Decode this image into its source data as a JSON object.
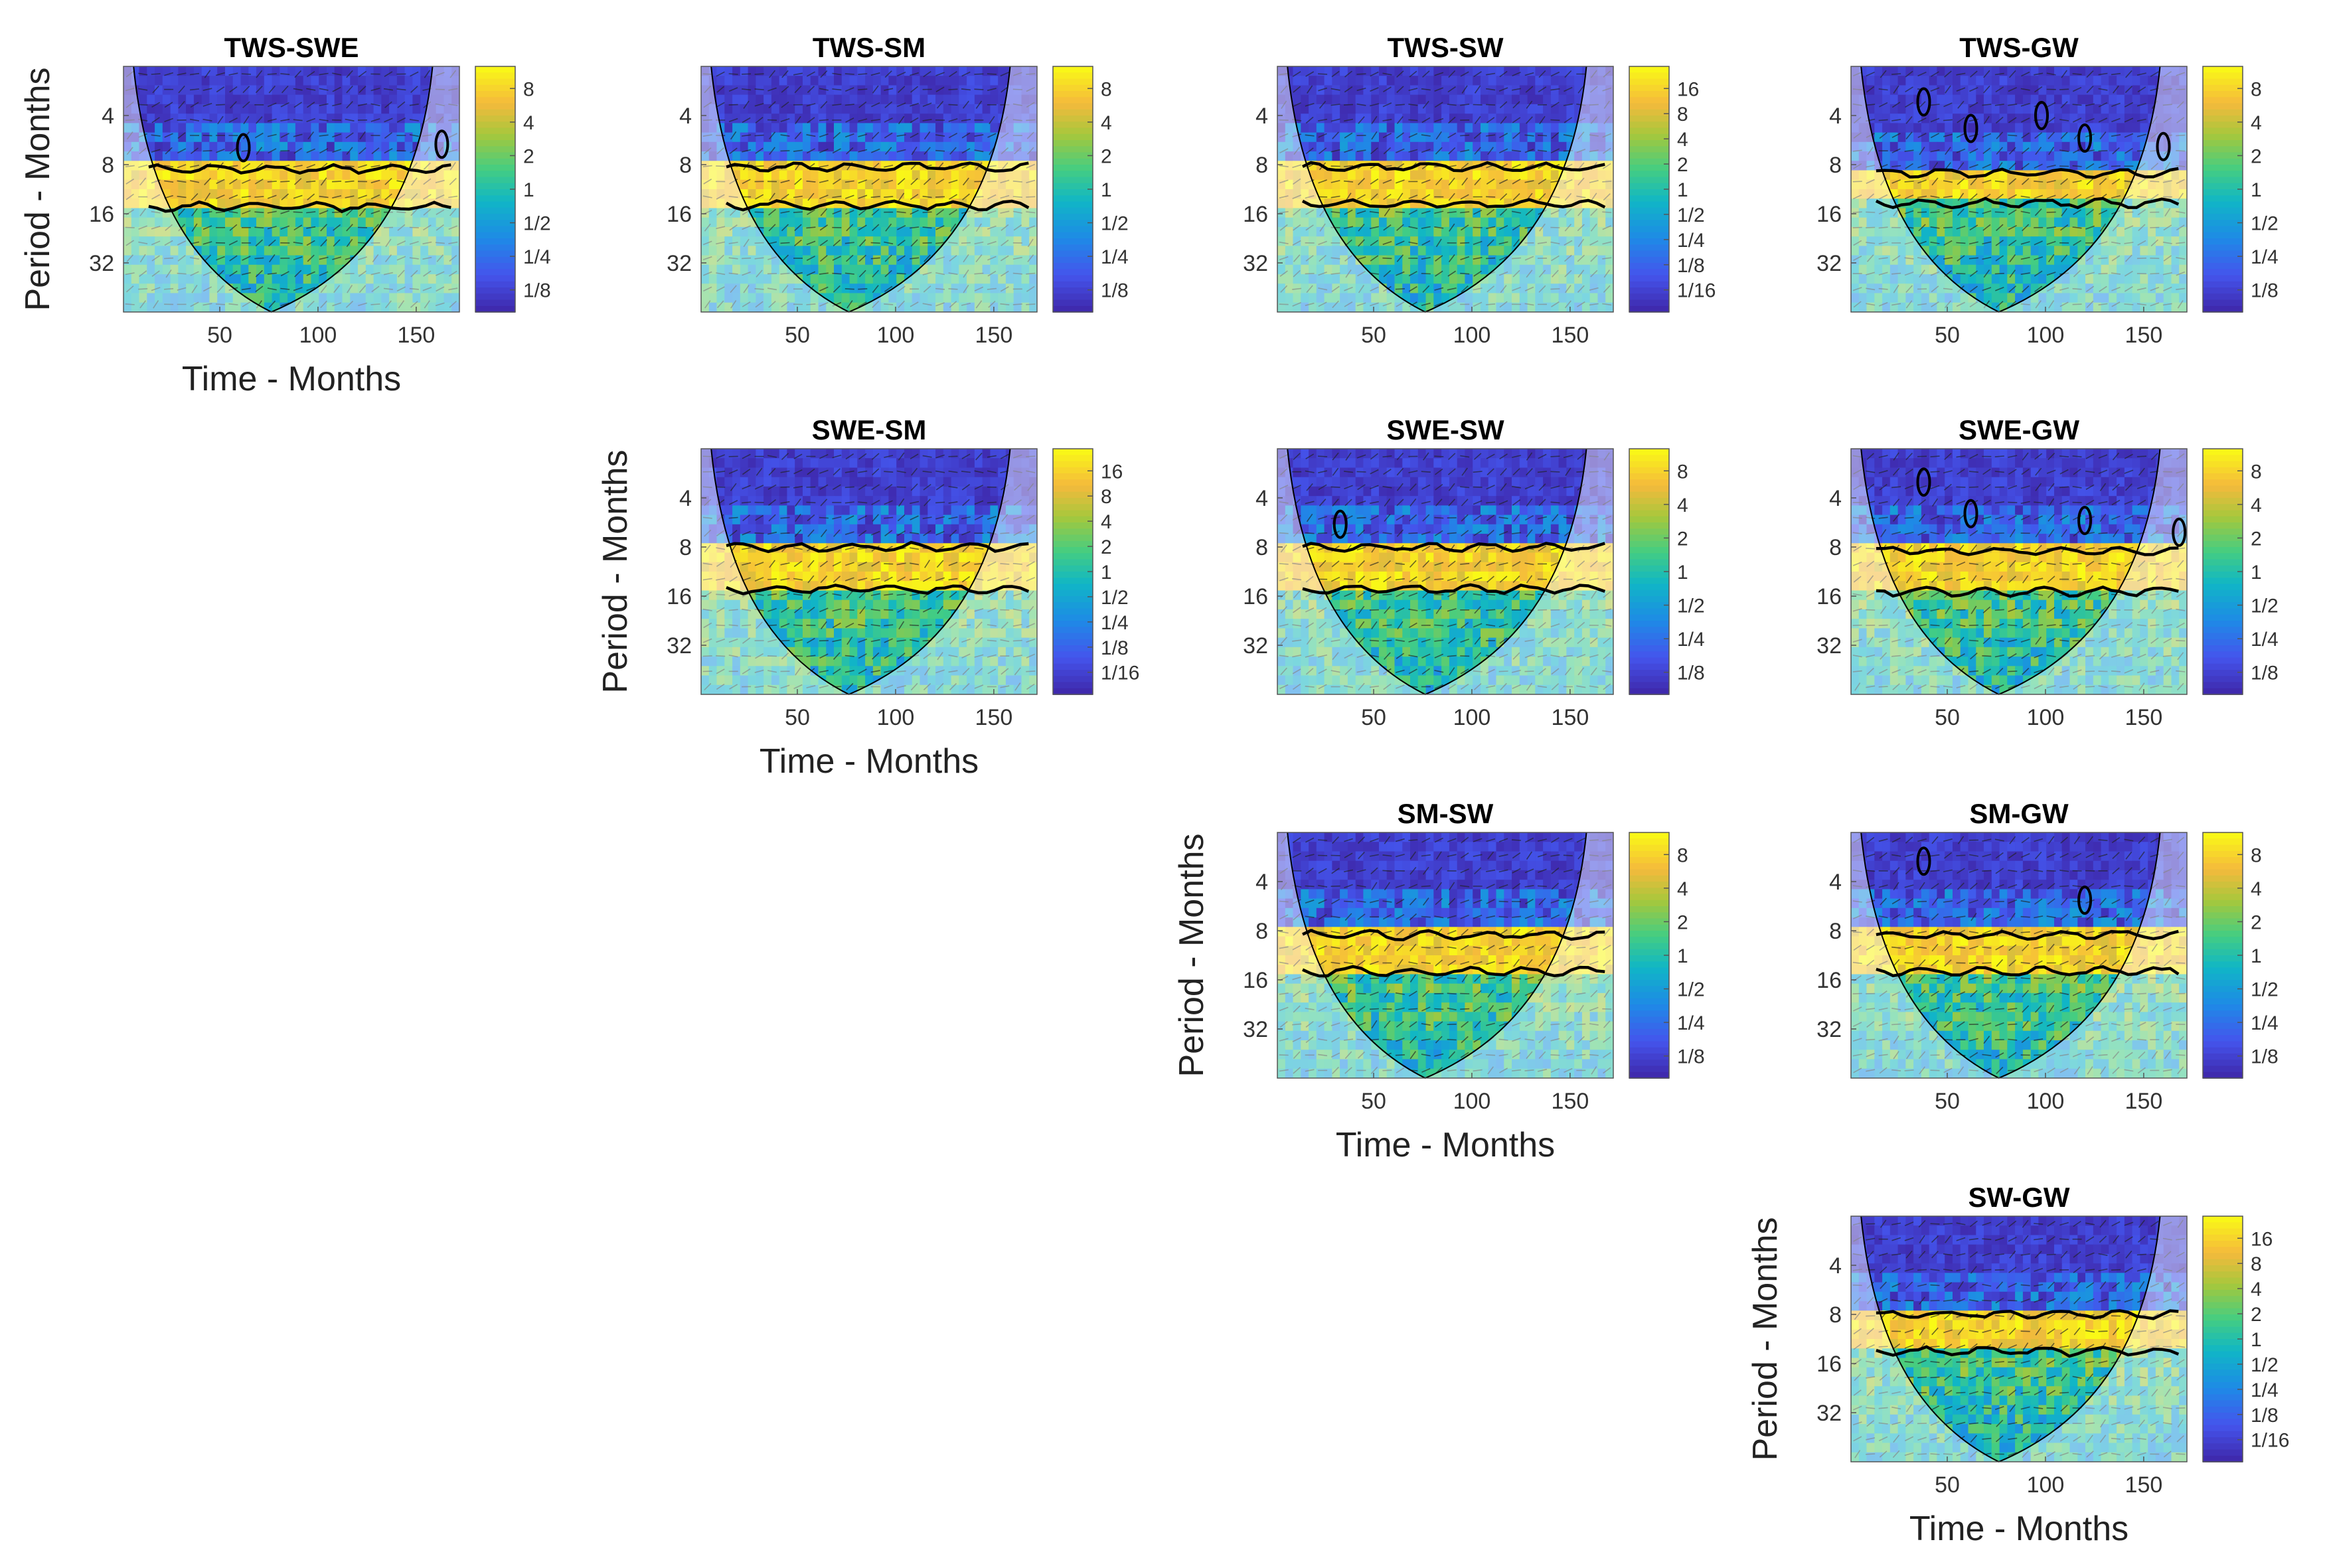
{
  "chart_data": {
    "type": "heatmap",
    "description_axes": {
      "xlabel": "Time - Months",
      "ylabel": "Period - Months",
      "xticks": [
        50,
        100,
        150
      ],
      "xlim": [
        1,
        172
      ],
      "yticks": [
        4,
        8,
        16,
        32
      ],
      "ylim_period": [
        2,
        64
      ]
    },
    "panels": [
      {
        "title": "TWS-SWE",
        "row": 0,
        "col": 0,
        "cbar": [
          "8",
          "4",
          "2",
          "1",
          "1/2",
          "1/4",
          "1/8"
        ],
        "show_xlabel": true,
        "show_ylabel": true,
        "sig_band": [
          8.5,
          14.5
        ],
        "extra_contours": [
          [
            62,
            6.3
          ],
          [
            163,
            6.0
          ]
        ]
      },
      {
        "title": "TWS-SM",
        "row": 0,
        "col": 1,
        "cbar": [
          "8",
          "4",
          "2",
          "1",
          "1/2",
          "1/4",
          "1/8"
        ],
        "show_xlabel": false,
        "show_ylabel": false,
        "sig_band": [
          8.3,
          14.2
        ],
        "extra_contours": []
      },
      {
        "title": "TWS-SW",
        "row": 0,
        "col": 2,
        "cbar": [
          "16",
          "8",
          "4",
          "2",
          "1",
          "1/2",
          "1/4",
          "1/8",
          "1/16"
        ],
        "show_xlabel": false,
        "show_ylabel": false,
        "sig_band": [
          8.3,
          14.0
        ],
        "extra_contours": []
      },
      {
        "title": "TWS-GW",
        "row": 0,
        "col": 3,
        "cbar": [
          "8",
          "4",
          "2",
          "1",
          "1/2",
          "1/4",
          "1/8"
        ],
        "show_xlabel": false,
        "show_ylabel": false,
        "sig_band": [
          9.0,
          13.8
        ],
        "extra_contours": [
          [
            38,
            3.3
          ],
          [
            62,
            4.8
          ],
          [
            98,
            4.0
          ],
          [
            120,
            5.5
          ],
          [
            160,
            6.2
          ]
        ]
      },
      {
        "title": "SWE-SM",
        "row": 1,
        "col": 1,
        "cbar": [
          "16",
          "8",
          "4",
          "2",
          "1",
          "1/2",
          "1/4",
          "1/8",
          "1/16"
        ],
        "show_xlabel": true,
        "show_ylabel": true,
        "sig_band": [
          8.0,
          14.5
        ],
        "extra_contours": []
      },
      {
        "title": "SWE-SW",
        "row": 1,
        "col": 2,
        "cbar": [
          "8",
          "4",
          "2",
          "1",
          "1/2",
          "1/4",
          "1/8"
        ],
        "show_xlabel": false,
        "show_ylabel": false,
        "sig_band": [
          8.0,
          14.5
        ],
        "extra_contours": [
          [
            33,
            5.8
          ]
        ]
      },
      {
        "title": "SWE-GW",
        "row": 1,
        "col": 3,
        "cbar": [
          "8",
          "4",
          "2",
          "1",
          "1/2",
          "1/4",
          "1/8"
        ],
        "show_xlabel": false,
        "show_ylabel": false,
        "sig_band": [
          8.5,
          15.0
        ],
        "extra_contours": [
          [
            38,
            3.2
          ],
          [
            62,
            5.0
          ],
          [
            120,
            5.5
          ],
          [
            168,
            6.5
          ]
        ]
      },
      {
        "title": "SM-SW",
        "row": 2,
        "col": 2,
        "cbar": [
          "8",
          "4",
          "2",
          "1",
          "1/2",
          "1/4",
          "1/8"
        ],
        "show_xlabel": true,
        "show_ylabel": true,
        "sig_band": [
          8.5,
          14.2
        ],
        "extra_contours": []
      },
      {
        "title": "SM-GW",
        "row": 2,
        "col": 3,
        "cbar": [
          "8",
          "4",
          "2",
          "1",
          "1/2",
          "1/4",
          "1/8"
        ],
        "show_xlabel": false,
        "show_ylabel": false,
        "sig_band": [
          8.5,
          14.2
        ],
        "extra_contours": [
          [
            38,
            3.0
          ],
          [
            120,
            5.2
          ]
        ]
      },
      {
        "title": "SW-GW",
        "row": 3,
        "col": 3,
        "cbar": [
          "16",
          "8",
          "4",
          "2",
          "1",
          "1/2",
          "1/4",
          "1/8",
          "1/16"
        ],
        "show_xlabel": true,
        "show_ylabel": true,
        "sig_band": [
          8.0,
          13.5
        ],
        "extra_contours": []
      }
    ],
    "colors": {
      "low": "#3e26a8",
      "mid": "#1fb4c9",
      "high": "#f9fb15",
      "coi": "#ffffff",
      "contour": "#000000"
    }
  }
}
